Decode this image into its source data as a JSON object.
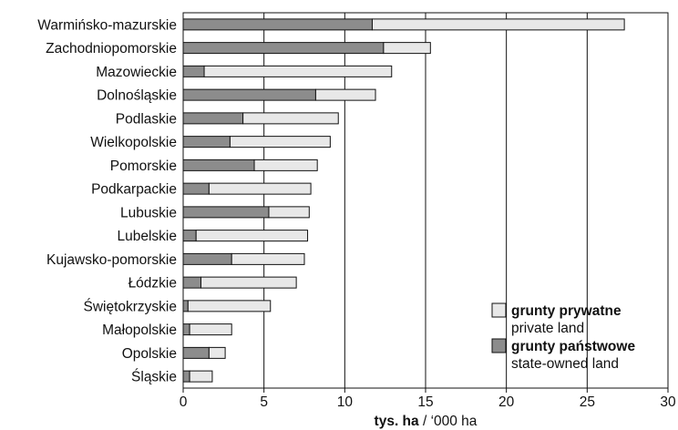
{
  "chart_data": {
    "type": "bar",
    "orientation": "horizontal",
    "stacked": true,
    "categories": [
      "Warmińsko-mazurskie",
      "Zachodniopomorskie",
      "Mazowieckie",
      "Dolnośląskie",
      "Podlaskie",
      "Wielkopolskie",
      "Pomorskie",
      "Podkarpackie",
      "Lubuskie",
      "Lubelskie",
      "Kujawsko-pomorskie",
      "Łódzkie",
      "Świętokrzyskie",
      "Małopolskie",
      "Opolskie",
      "Śląskie"
    ],
    "series": [
      {
        "name": "grunty państwowe",
        "name_en": "state-owned land",
        "color": "#8c8c8c",
        "values": [
          11.7,
          12.4,
          1.3,
          8.2,
          3.7,
          2.9,
          4.4,
          1.6,
          5.3,
          0.8,
          3.0,
          1.1,
          0.3,
          0.4,
          1.6,
          0.4
        ]
      },
      {
        "name": "grunty prywatne",
        "name_en": "private land",
        "color": "#e8e8e8",
        "values": [
          15.6,
          2.9,
          11.6,
          3.7,
          5.9,
          6.2,
          3.9,
          6.3,
          2.5,
          6.9,
          4.5,
          5.9,
          5.1,
          2.6,
          1.0,
          1.4
        ]
      }
    ],
    "xlim": [
      0,
      30
    ],
    "xticks": [
      "0",
      "5",
      "10",
      "15",
      "20",
      "25",
      "30"
    ],
    "xlabel_bold": "tys. ha",
    "xlabel_rest": " / ‘000 ha",
    "legend_position": "bottom-right",
    "grid": "vertical"
  }
}
